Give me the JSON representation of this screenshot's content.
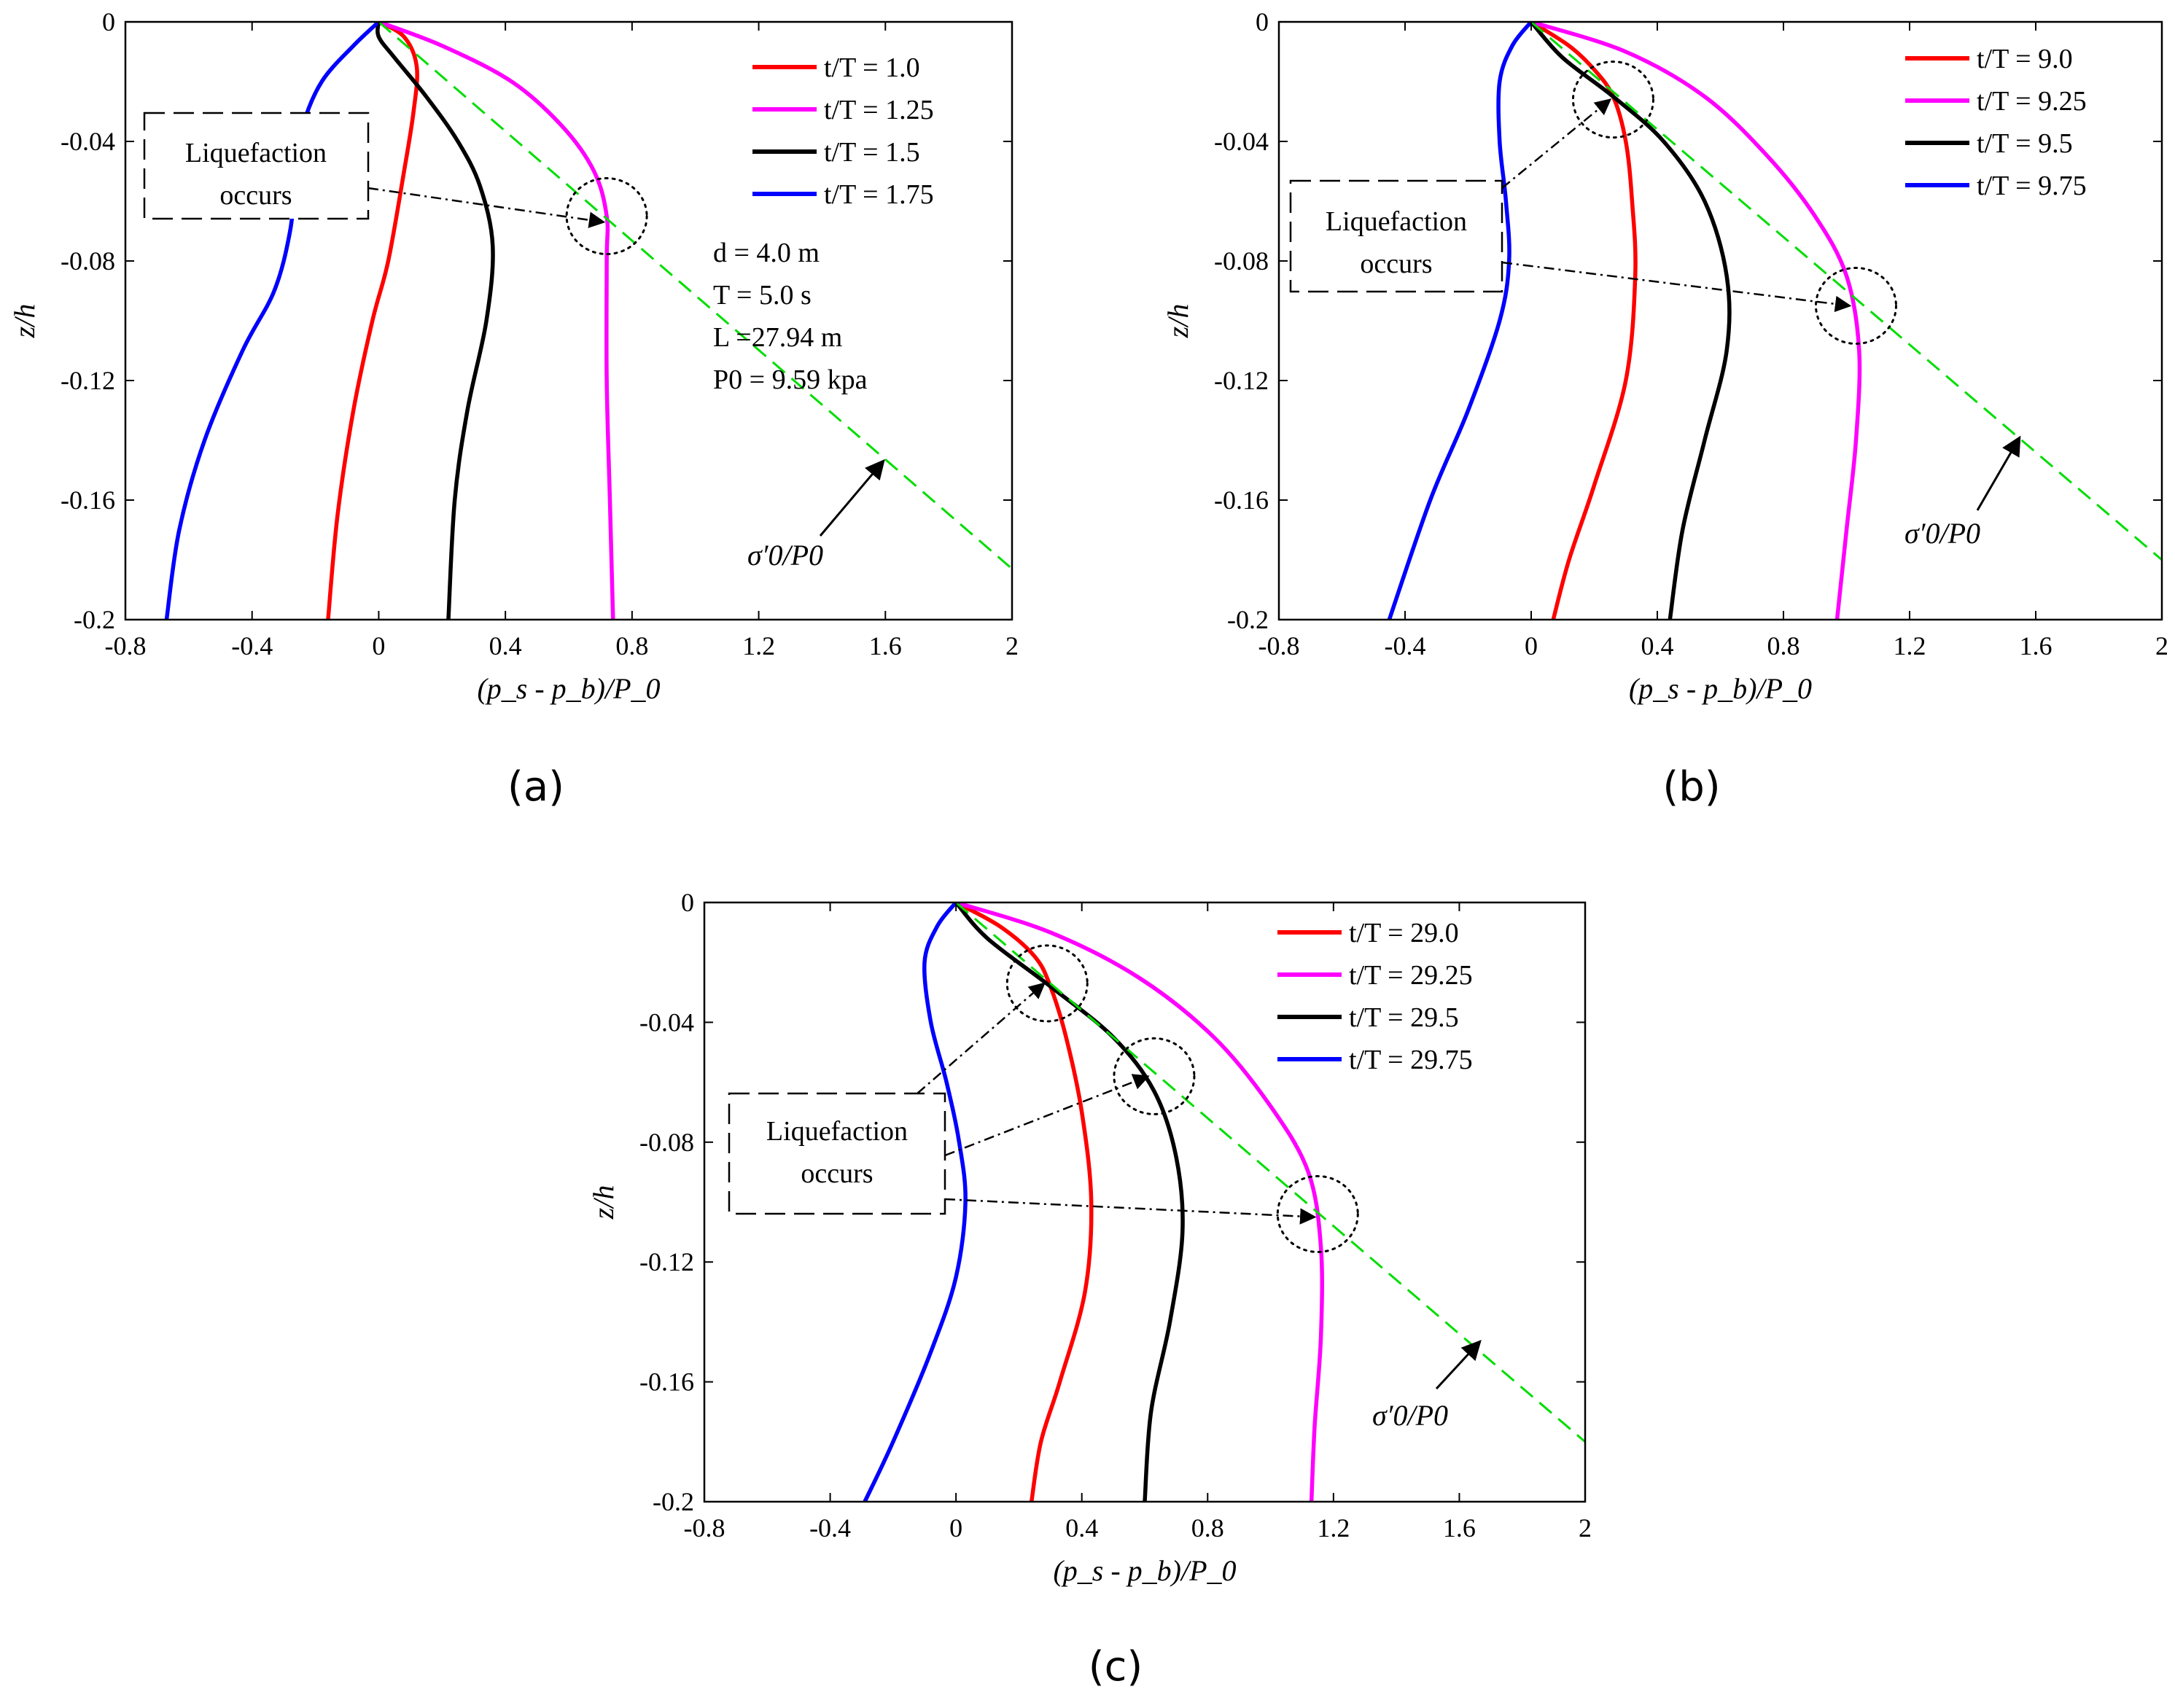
{
  "chart_data": [
    {
      "type": "line",
      "panel_label": "(a)",
      "panel_letter": "a",
      "xlabel": "(p_s - p_b)/P_0",
      "ylabel": "z/h",
      "xlim": [
        -0.8,
        2
      ],
      "ylim": [
        -0.2,
        0
      ],
      "xticks": [
        -0.8,
        -0.4,
        0,
        0.4,
        0.8,
        1.2,
        1.6,
        2
      ],
      "xtick_labels": [
        "-0.8",
        "-0.4",
        "0",
        "0.4",
        "0.8",
        "1.2",
        "1.6",
        "2"
      ],
      "yticks": [
        0,
        -0.04,
        -0.08,
        -0.12,
        -0.16,
        -0.2
      ],
      "ytick_labels": [
        "0",
        "-0.04",
        "-0.08",
        "-0.12",
        "-0.16",
        "-0.2"
      ],
      "series": [
        {
          "name": "t/T = 1.0",
          "color": "#ff0000",
          "points": [
            [
              0,
              0
            ],
            [
              0.08,
              -0.005
            ],
            [
              0.12,
              -0.015
            ],
            [
              0.11,
              -0.03
            ],
            [
              0.08,
              -0.05
            ],
            [
              0.03,
              -0.08
            ],
            [
              -0.02,
              -0.1
            ],
            [
              -0.08,
              -0.13
            ],
            [
              -0.13,
              -0.165
            ],
            [
              -0.16,
              -0.2
            ]
          ]
        },
        {
          "name": "t/T = 1.25",
          "color": "#ff00ff",
          "points": [
            [
              0,
              0
            ],
            [
              0.2,
              -0.008
            ],
            [
              0.42,
              -0.02
            ],
            [
              0.58,
              -0.035
            ],
            [
              0.68,
              -0.05
            ],
            [
              0.72,
              -0.065
            ],
            [
              0.72,
              -0.08
            ],
            [
              0.72,
              -0.12
            ],
            [
              0.73,
              -0.16
            ],
            [
              0.74,
              -0.2
            ]
          ]
        },
        {
          "name": "t/T = 1.5",
          "color": "#000000",
          "points": [
            [
              0,
              0
            ],
            [
              0,
              -0.005
            ],
            [
              0.05,
              -0.012
            ],
            [
              0.15,
              -0.025
            ],
            [
              0.25,
              -0.04
            ],
            [
              0.32,
              -0.055
            ],
            [
              0.36,
              -0.075
            ],
            [
              0.34,
              -0.1
            ],
            [
              0.28,
              -0.13
            ],
            [
              0.24,
              -0.16
            ],
            [
              0.22,
              -0.2
            ]
          ]
        },
        {
          "name": "t/T = 1.75",
          "color": "#0000ff",
          "points": [
            [
              0,
              0
            ],
            [
              -0.08,
              -0.008
            ],
            [
              -0.18,
              -0.02
            ],
            [
              -0.24,
              -0.035
            ],
            [
              -0.26,
              -0.05
            ],
            [
              -0.28,
              -0.07
            ],
            [
              -0.33,
              -0.09
            ],
            [
              -0.43,
              -0.11
            ],
            [
              -0.55,
              -0.14
            ],
            [
              -0.63,
              -0.17
            ],
            [
              -0.67,
              -0.2
            ]
          ]
        },
        {
          "name": "sigma_0'/P_0",
          "color": "#00dd00",
          "dashed": true,
          "points": [
            [
              0,
              0
            ],
            [
              2,
              -0.183
            ]
          ]
        }
      ],
      "circles": [
        [
          0.72,
          -0.065
        ]
      ],
      "arrow_targets": [
        [
          0.72,
          -0.067
        ]
      ],
      "text_block": [
        "d = 4.0 m",
        "T = 5.0 s",
        "L =27.94 m",
        "P0 = 9.59 kpa"
      ],
      "liquefaction_label": [
        "Liquefaction",
        "occurs"
      ],
      "sigma_label": "σ′0/P0"
    },
    {
      "type": "line",
      "panel_label": "(b)",
      "panel_letter": "b",
      "xlabel": "(p_s - p_b)/P_0",
      "ylabel": "z/h",
      "xlim": [
        -0.8,
        2
      ],
      "ylim": [
        -0.2,
        0
      ],
      "xticks": [
        -0.8,
        -0.4,
        0,
        0.4,
        0.8,
        1.2,
        1.6,
        2
      ],
      "xtick_labels": [
        "-0.8",
        "-0.4",
        "0",
        "0.4",
        "0.8",
        "1.2",
        "1.6",
        "2"
      ],
      "yticks": [
        0,
        -0.04,
        -0.08,
        -0.12,
        -0.16,
        -0.2
      ],
      "ytick_labels": [
        "0",
        "-0.04",
        "-0.08",
        "-0.12",
        "-0.16",
        "-0.2"
      ],
      "series": [
        {
          "name": "t/T = 9.0",
          "color": "#ff0000",
          "points": [
            [
              0,
              0
            ],
            [
              0.12,
              -0.008
            ],
            [
              0.2,
              -0.016
            ],
            [
              0.26,
              -0.025
            ],
            [
              0.3,
              -0.04
            ],
            [
              0.32,
              -0.06
            ],
            [
              0.33,
              -0.085
            ],
            [
              0.3,
              -0.12
            ],
            [
              0.2,
              -0.155
            ],
            [
              0.12,
              -0.18
            ],
            [
              0.07,
              -0.2
            ]
          ]
        },
        {
          "name": "t/T = 9.25",
          "color": "#ff00ff",
          "points": [
            [
              0,
              0
            ],
            [
              0.3,
              -0.01
            ],
            [
              0.55,
              -0.025
            ],
            [
              0.75,
              -0.045
            ],
            [
              0.9,
              -0.065
            ],
            [
              1.0,
              -0.085
            ],
            [
              1.04,
              -0.11
            ],
            [
              1.03,
              -0.14
            ],
            [
              1.0,
              -0.17
            ],
            [
              0.97,
              -0.2
            ]
          ]
        },
        {
          "name": "t/T = 9.5",
          "color": "#000000",
          "points": [
            [
              0,
              0
            ],
            [
              0.1,
              -0.012
            ],
            [
              0.26,
              -0.025
            ],
            [
              0.42,
              -0.04
            ],
            [
              0.55,
              -0.06
            ],
            [
              0.62,
              -0.085
            ],
            [
              0.62,
              -0.11
            ],
            [
              0.55,
              -0.14
            ],
            [
              0.48,
              -0.17
            ],
            [
              0.44,
              -0.2
            ]
          ]
        },
        {
          "name": "t/T = 9.75",
          "color": "#0000ff",
          "points": [
            [
              0,
              0
            ],
            [
              -0.06,
              -0.008
            ],
            [
              -0.1,
              -0.02
            ],
            [
              -0.1,
              -0.04
            ],
            [
              -0.08,
              -0.06
            ],
            [
              -0.07,
              -0.08
            ],
            [
              -0.1,
              -0.1
            ],
            [
              -0.2,
              -0.13
            ],
            [
              -0.32,
              -0.16
            ],
            [
              -0.45,
              -0.2
            ]
          ]
        },
        {
          "name": "sigma_0'/P_0",
          "color": "#00dd00",
          "dashed": true,
          "points": [
            [
              0,
              0
            ],
            [
              2,
              -0.18
            ]
          ]
        }
      ],
      "circles": [
        [
          0.26,
          -0.026
        ],
        [
          1.03,
          -0.095
        ]
      ],
      "arrow_targets": [
        [
          0.26,
          -0.026
        ],
        [
          1.02,
          -0.095
        ]
      ],
      "liquefaction_label": [
        "Liquefaction",
        "occurs"
      ],
      "sigma_label": "σ′0/P0"
    },
    {
      "type": "line",
      "panel_label": "(c)",
      "panel_letter": "c",
      "xlabel": "(p_s - p_b)/P_0",
      "ylabel": "z/h",
      "xlim": [
        -0.8,
        2
      ],
      "ylim": [
        -0.2,
        0
      ],
      "xticks": [
        -0.8,
        -0.4,
        0,
        0.4,
        0.8,
        1.2,
        1.6,
        2
      ],
      "xtick_labels": [
        "-0.8",
        "-0.4",
        "0",
        "0.4",
        "0.8",
        "1.2",
        "1.6",
        "2"
      ],
      "yticks": [
        0,
        -0.04,
        -0.08,
        -0.12,
        -0.16,
        -0.2
      ],
      "ytick_labels": [
        "0",
        "-0.04",
        "-0.08",
        "-0.12",
        "-0.16",
        "-0.2"
      ],
      "series": [
        {
          "name": "t/T = 29.0",
          "color": "#ff0000",
          "points": [
            [
              0,
              0
            ],
            [
              0.14,
              -0.008
            ],
            [
              0.25,
              -0.018
            ],
            [
              0.3,
              -0.028
            ],
            [
              0.35,
              -0.045
            ],
            [
              0.4,
              -0.07
            ],
            [
              0.43,
              -0.1
            ],
            [
              0.41,
              -0.13
            ],
            [
              0.33,
              -0.16
            ],
            [
              0.27,
              -0.18
            ],
            [
              0.24,
              -0.2
            ]
          ]
        },
        {
          "name": "t/T = 29.25",
          "color": "#ff00ff",
          "points": [
            [
              0,
              0
            ],
            [
              0.3,
              -0.01
            ],
            [
              0.58,
              -0.025
            ],
            [
              0.82,
              -0.045
            ],
            [
              1.0,
              -0.068
            ],
            [
              1.12,
              -0.09
            ],
            [
              1.16,
              -0.115
            ],
            [
              1.16,
              -0.145
            ],
            [
              1.14,
              -0.175
            ],
            [
              1.13,
              -0.2
            ]
          ]
        },
        {
          "name": "t/T = 29.5",
          "color": "#000000",
          "points": [
            [
              0,
              0
            ],
            [
              0.1,
              -0.012
            ],
            [
              0.3,
              -0.028
            ],
            [
              0.5,
              -0.045
            ],
            [
              0.63,
              -0.063
            ],
            [
              0.7,
              -0.085
            ],
            [
              0.72,
              -0.11
            ],
            [
              0.68,
              -0.14
            ],
            [
              0.62,
              -0.17
            ],
            [
              0.6,
              -0.2
            ]
          ]
        },
        {
          "name": "t/T = 29.75",
          "color": "#0000ff",
          "points": [
            [
              0,
              0
            ],
            [
              -0.06,
              -0.008
            ],
            [
              -0.1,
              -0.02
            ],
            [
              -0.08,
              -0.04
            ],
            [
              -0.03,
              -0.06
            ],
            [
              0.01,
              -0.08
            ],
            [
              0.03,
              -0.1
            ],
            [
              0.0,
              -0.125
            ],
            [
              -0.08,
              -0.15
            ],
            [
              -0.2,
              -0.18
            ],
            [
              -0.29,
              -0.2
            ]
          ]
        },
        {
          "name": "sigma_0'/P_0",
          "color": "#00dd00",
          "dashed": true,
          "points": [
            [
              0,
              0
            ],
            [
              2,
              -0.18
            ]
          ]
        }
      ],
      "circles": [
        [
          0.29,
          -0.027
        ],
        [
          0.63,
          -0.058
        ],
        [
          1.15,
          -0.104
        ]
      ],
      "arrow_targets": [
        [
          0.29,
          -0.027
        ],
        [
          0.62,
          -0.058
        ],
        [
          1.15,
          -0.105
        ]
      ],
      "liquefaction_label": [
        "Liquefaction",
        "occurs"
      ],
      "sigma_label": "σ′0/P0"
    }
  ]
}
